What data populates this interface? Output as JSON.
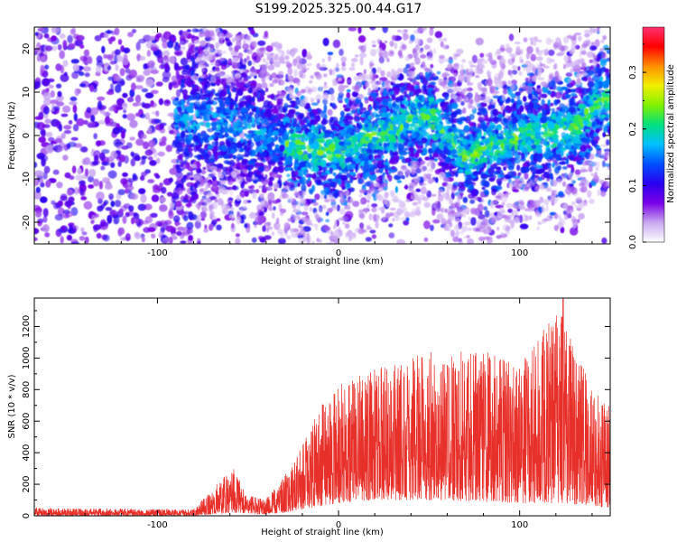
{
  "title": "S199.2025.325.00.44.G17",
  "chart_data": [
    {
      "type": "heatmap",
      "title": "S199.2025.325.00.44.G17",
      "xlabel": "Height of straight line (km)",
      "ylabel": "Frequency (Hz)",
      "xlim": [
        -168,
        150
      ],
      "ylim": [
        -25,
        25
      ],
      "xticks": [
        -100,
        0,
        100
      ],
      "yticks": [
        -20,
        -10,
        0,
        10,
        20
      ],
      "colorbar": {
        "label": "Normalized spectral amplitude",
        "range": [
          0.0,
          0.38
        ],
        "ticks": [
          0.0,
          0.1,
          0.2,
          0.3
        ],
        "colors": [
          "#ffffff",
          "#c8a8f0",
          "#7a00e8",
          "#2a00f0",
          "#0050ff",
          "#00c0ff",
          "#00e080",
          "#80f000",
          "#f0f000",
          "#ff9000",
          "#ff0000",
          "#ff3070"
        ]
      },
      "band_center_hz": [
        {
          "x": -168,
          "f": 0
        },
        {
          "x": -80,
          "f": 3
        },
        {
          "x": -55,
          "f": 2
        },
        {
          "x": -20,
          "f": -3
        },
        {
          "x": 0,
          "f": -4
        },
        {
          "x": 20,
          "f": 0
        },
        {
          "x": 50,
          "f": 5
        },
        {
          "x": 70,
          "f": -5
        },
        {
          "x": 100,
          "f": 0
        },
        {
          "x": 130,
          "f": 1
        },
        {
          "x": 145,
          "f": 8
        }
      ]
    },
    {
      "type": "line",
      "title": "",
      "xlabel": "Height of straight line (km)",
      "ylabel": "SNR (10 * v/v)",
      "xlim": [
        -168,
        150
      ],
      "ylim": [
        0,
        1380
      ],
      "xticks": [
        -100,
        0,
        100
      ],
      "yticks": [
        0,
        200,
        400,
        600,
        800,
        1000,
        1200
      ],
      "color": "#e8302a",
      "envelope": [
        {
          "x": -168,
          "low": 0,
          "high": 50
        },
        {
          "x": -80,
          "low": 0,
          "high": 40
        },
        {
          "x": -68,
          "low": 10,
          "high": 200
        },
        {
          "x": -58,
          "low": 20,
          "high": 300
        },
        {
          "x": -50,
          "low": 10,
          "high": 130
        },
        {
          "x": -40,
          "low": 10,
          "high": 110
        },
        {
          "x": -30,
          "low": 20,
          "high": 250
        },
        {
          "x": -20,
          "low": 40,
          "high": 450
        },
        {
          "x": -10,
          "low": 60,
          "high": 700
        },
        {
          "x": 0,
          "low": 80,
          "high": 850
        },
        {
          "x": 20,
          "low": 100,
          "high": 950
        },
        {
          "x": 50,
          "low": 100,
          "high": 1050
        },
        {
          "x": 80,
          "low": 90,
          "high": 1050
        },
        {
          "x": 100,
          "low": 80,
          "high": 950
        },
        {
          "x": 124,
          "low": 80,
          "high": 1380
        },
        {
          "x": 140,
          "low": 60,
          "high": 800
        },
        {
          "x": 150,
          "low": 50,
          "high": 700
        }
      ]
    }
  ]
}
